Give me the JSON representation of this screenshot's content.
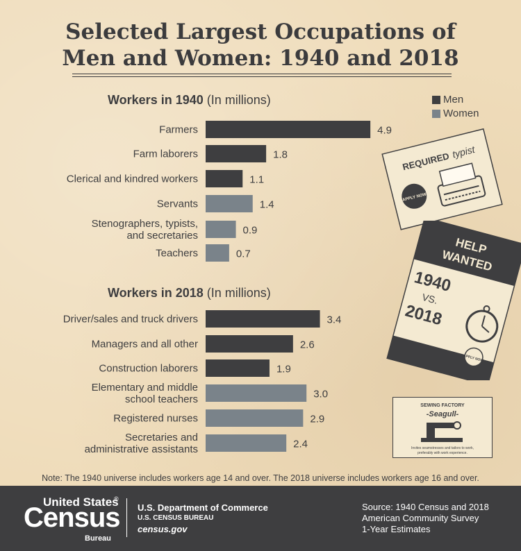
{
  "title_line1": "Selected Largest Occupations of",
  "title_line2": "Men and Women: 1940 and 2018",
  "legend": {
    "men": "Men",
    "women": "Women"
  },
  "colors": {
    "men": "#3e3e40",
    "women": "#7a838a"
  },
  "chart_data": [
    {
      "type": "bar",
      "title_bold": "Workers in 1940",
      "title_unit": "(In millions)",
      "categories": [
        "Farmers",
        "Farm laborers",
        "Clerical and kindred workers",
        "Servants",
        "Stenographers, typists, and secretaries",
        "Teachers"
      ],
      "category_lines": [
        [
          "Farmers"
        ],
        [
          "Farm laborers"
        ],
        [
          "Clerical and kindred workers"
        ],
        [
          "Servants"
        ],
        [
          "Stenographers, typists,",
          "and secretaries"
        ],
        [
          "Teachers"
        ]
      ],
      "values": [
        4.9,
        1.8,
        1.1,
        1.4,
        0.9,
        0.7
      ],
      "value_labels": [
        "4.9",
        "1.8",
        "1.1",
        "1.4",
        "0.9",
        "0.7"
      ],
      "sex": [
        "Men",
        "Men",
        "Men",
        "Women",
        "Women",
        "Women"
      ]
    },
    {
      "type": "bar",
      "title_bold": "Workers in 2018",
      "title_unit": "(In millions)",
      "categories": [
        "Driver/sales and truck drivers",
        "Managers and all other",
        "Construction laborers",
        "Elementary and middle school teachers",
        "Registered nurses",
        "Secretaries and administrative assistants"
      ],
      "category_lines": [
        [
          "Driver/sales and truck drivers"
        ],
        [
          "Managers and all other"
        ],
        [
          "Construction laborers"
        ],
        [
          "Elementary and middle",
          "school teachers"
        ],
        [
          "Registered nurses"
        ],
        [
          "Secretaries and",
          "administrative assistants"
        ]
      ],
      "values": [
        3.4,
        2.6,
        1.9,
        3.0,
        2.9,
        2.4
      ],
      "value_labels": [
        "3.4",
        "2.6",
        "1.9",
        "3.0",
        "2.9",
        "2.4"
      ],
      "sex": [
        "Men",
        "Men",
        "Men",
        "Women",
        "Women",
        "Women"
      ]
    }
  ],
  "ads": {
    "typist": {
      "required": "REQUIRED",
      "typist": "typist",
      "stamp": "APPLY NOW"
    },
    "help": {
      "line1": "HELP",
      "line2": "WANTED",
      "year1": "1940",
      "vs": "VS.",
      "year2": "2018",
      "stamp": "APPLY NOW"
    },
    "sewing": {
      "factory": "SEWING FACTORY",
      "brand": "-Seagull-",
      "desc1": "Invites seamstresses and tailors to work,",
      "desc2": "preferably with work experience."
    }
  },
  "note": "Note: The 1940 universe includes workers age 14 and over. The 2018 universe includes workers age 16 and over.",
  "footer": {
    "logo_line1": "United States",
    "logo_reg": "®",
    "logo_line2": "Census",
    "logo_line3": "Bureau",
    "dept": "U.S. Department of Commerce",
    "bureau": "U.S. CENSUS BUREAU",
    "site": "census.gov",
    "source_line1": "Source: 1940 Census and 2018",
    "source_line2": "American Community Survey",
    "source_line3": "1-Year Estimates"
  }
}
